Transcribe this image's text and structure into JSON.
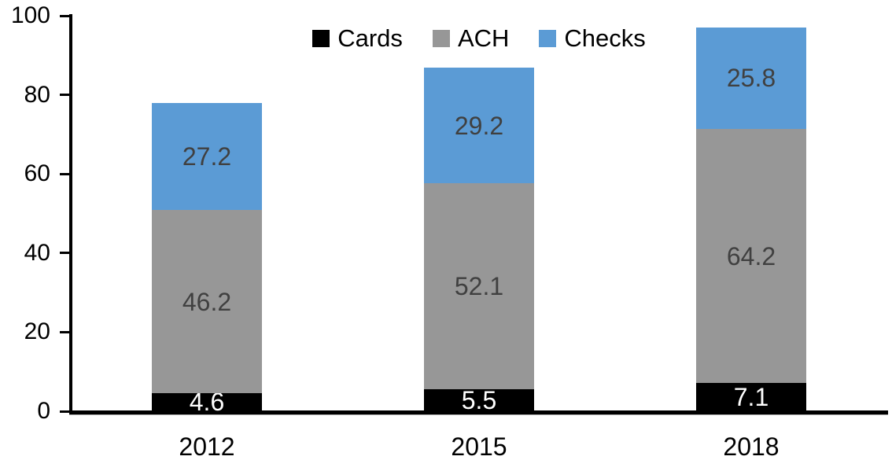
{
  "chart_data": {
    "type": "bar",
    "stacked": true,
    "title": "",
    "xlabel": "",
    "ylabel": "",
    "categories": [
      "2012",
      "2015",
      "2018"
    ],
    "series": [
      {
        "name": "Cards",
        "color": "#000000",
        "label_color": "#FFFFFF",
        "values": [
          4.6,
          5.5,
          7.1
        ]
      },
      {
        "name": "ACH",
        "color": "#979797",
        "label_color": "#404040",
        "values": [
          46.2,
          52.1,
          64.2
        ]
      },
      {
        "name": "Checks",
        "color": "#5B9BD5",
        "label_color": "#404040",
        "values": [
          27.2,
          29.2,
          25.8
        ]
      }
    ],
    "totals": [
      78.0,
      86.8,
      97.1
    ],
    "ylim": [
      0,
      100
    ],
    "yticks": [
      0,
      20,
      40,
      60,
      80,
      100
    ],
    "grid": false,
    "legend_position": "top-center",
    "axis_color": "#000000",
    "background_color": "#FFFFFF"
  }
}
